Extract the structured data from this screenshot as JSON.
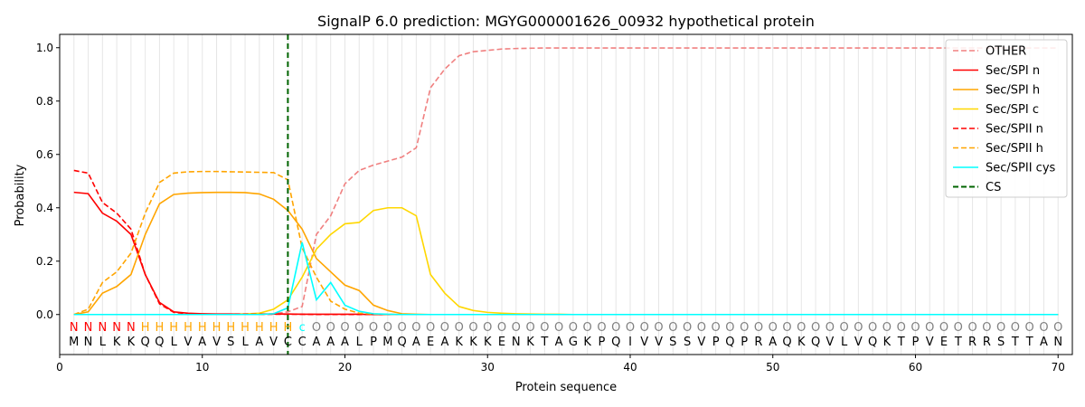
{
  "chart_data": {
    "type": "line",
    "title": "SignalP 6.0 prediction: MGYG000001626_00932 hypothetical protein",
    "xlabel": "Protein sequence",
    "ylabel": "Probability",
    "xlim": [
      0,
      71
    ],
    "ylim": [
      -0.15,
      1.05
    ],
    "xticks": [
      0,
      10,
      20,
      30,
      40,
      50,
      60,
      70
    ],
    "yticks": [
      0.0,
      0.2,
      0.4,
      0.6,
      0.8,
      1.0
    ],
    "ytick_labels": [
      "0.0",
      "0.2",
      "0.4",
      "0.6",
      "0.8",
      "1.0"
    ],
    "legend_position": "top-right",
    "grid": "vertical lines at each residue",
    "cs_position": 16,
    "sequence": [
      "M",
      "N",
      "L",
      "K",
      "K",
      "Q",
      "Q",
      "L",
      "V",
      "A",
      "V",
      "S",
      "L",
      "A",
      "V",
      "C",
      "C",
      "A",
      "A",
      "A",
      "L",
      "P",
      "M",
      "Q",
      "A",
      "E",
      "A",
      "K",
      "K",
      "K",
      "E",
      "N",
      "K",
      "T",
      "A",
      "G",
      "K",
      "P",
      "Q",
      "I",
      "V",
      "V",
      "S",
      "S",
      "V",
      "P",
      "Q",
      "P",
      "R",
      "A",
      "Q",
      "K",
      "Q",
      "V",
      "L",
      "V",
      "Q",
      "K",
      "T",
      "P",
      "V",
      "E",
      "T",
      "R",
      "R",
      "S",
      "T",
      "T",
      "A",
      "N"
    ],
    "labels": [
      "N",
      "N",
      "N",
      "N",
      "N",
      "H",
      "H",
      "H",
      "H",
      "H",
      "H",
      "H",
      "H",
      "H",
      "H",
      "H",
      "C",
      "O",
      "O",
      "O",
      "O",
      "O",
      "O",
      "O",
      "O",
      "O",
      "O",
      "O",
      "O",
      "O",
      "O",
      "O",
      "O",
      "O",
      "O",
      "O",
      "O",
      "O",
      "O",
      "O",
      "O",
      "O",
      "O",
      "O",
      "O",
      "O",
      "O",
      "O",
      "O",
      "O",
      "O",
      "O",
      "O",
      "O",
      "O",
      "O",
      "O",
      "O",
      "O",
      "O",
      "O",
      "O",
      "O",
      "O",
      "O",
      "O",
      "O",
      "O",
      "O",
      "O"
    ],
    "label_colors": {
      "N": "#ff0000",
      "H": "#ffa500",
      "C": "#00ffff",
      "O": "#808080"
    },
    "series": [
      {
        "name": "OTHER",
        "color": "#f08080",
        "dash": true,
        "values": [
          0.0,
          0.0,
          0.0,
          0.0,
          0.0,
          0.0,
          0.0,
          0.0,
          0.0,
          0.0,
          0.0,
          0.0,
          0.0,
          0.0,
          0.003,
          0.01,
          0.03,
          0.3,
          0.37,
          0.49,
          0.54,
          0.56,
          0.575,
          0.59,
          0.625,
          0.85,
          0.92,
          0.97,
          0.985,
          0.99,
          0.995,
          0.997,
          0.998,
          0.999,
          0.999,
          0.999,
          0.999,
          0.999,
          0.999,
          0.999,
          0.999,
          0.999,
          0.999,
          0.999,
          0.999,
          0.999,
          0.999,
          0.999,
          0.999,
          0.999,
          0.999,
          0.999,
          0.999,
          0.999,
          0.999,
          0.999,
          0.999,
          0.999,
          0.999,
          0.999,
          0.999,
          0.999,
          0.999,
          0.999,
          0.999,
          0.999,
          0.999,
          0.999,
          0.999,
          0.999
        ]
      },
      {
        "name": "Sec/SPI n",
        "color": "#ff0000",
        "dash": false,
        "values": [
          0.458,
          0.453,
          0.38,
          0.35,
          0.3,
          0.15,
          0.045,
          0.01,
          0.005,
          0.003,
          0.002,
          0.002,
          0.002,
          0.002,
          0.002,
          0.002,
          0.001,
          0.001,
          0.001,
          0.001,
          0.001,
          0,
          0,
          0,
          0,
          0,
          0,
          0,
          0,
          0,
          0,
          0,
          0,
          0,
          0,
          0,
          0,
          0,
          0,
          0,
          0,
          0,
          0,
          0,
          0,
          0,
          0,
          0,
          0,
          0,
          0,
          0,
          0,
          0,
          0,
          0,
          0,
          0,
          0,
          0,
          0,
          0,
          0,
          0,
          0,
          0,
          0,
          0,
          0,
          0
        ]
      },
      {
        "name": "Sec/SPI h",
        "color": "#ffa500",
        "dash": false,
        "values": [
          0.0,
          0.01,
          0.08,
          0.105,
          0.15,
          0.3,
          0.415,
          0.45,
          0.455,
          0.457,
          0.458,
          0.458,
          0.457,
          0.452,
          0.432,
          0.39,
          0.32,
          0.21,
          0.16,
          0.11,
          0.09,
          0.035,
          0.015,
          0.003,
          0.001,
          0,
          0,
          0,
          0,
          0,
          0,
          0,
          0,
          0,
          0,
          0,
          0,
          0,
          0,
          0,
          0,
          0,
          0,
          0,
          0,
          0,
          0,
          0,
          0,
          0,
          0,
          0,
          0,
          0,
          0,
          0,
          0,
          0,
          0,
          0,
          0,
          0,
          0,
          0,
          0,
          0,
          0,
          0,
          0,
          0
        ]
      },
      {
        "name": "Sec/SPI c",
        "color": "#ffd700",
        "dash": false,
        "values": [
          0,
          0,
          0,
          0,
          0,
          0,
          0,
          0,
          0,
          0,
          0,
          0,
          0.002,
          0.005,
          0.02,
          0.055,
          0.14,
          0.245,
          0.3,
          0.34,
          0.345,
          0.39,
          0.4,
          0.4,
          0.37,
          0.15,
          0.08,
          0.03,
          0.015,
          0.008,
          0.005,
          0.003,
          0.002,
          0.001,
          0.001,
          0,
          0,
          0,
          0,
          0,
          0,
          0,
          0,
          0,
          0,
          0,
          0,
          0,
          0,
          0,
          0,
          0,
          0,
          0,
          0,
          0,
          0,
          0,
          0,
          0,
          0,
          0,
          0,
          0,
          0,
          0,
          0,
          0,
          0,
          0
        ]
      },
      {
        "name": "Sec/SPII n",
        "color": "#ff0000",
        "dash": true,
        "values": [
          0.54,
          0.53,
          0.42,
          0.38,
          0.32,
          0.15,
          0.04,
          0.008,
          0.003,
          0.002,
          0.001,
          0.001,
          0.001,
          0.001,
          0.001,
          0.001,
          0.001,
          0,
          0,
          0,
          0,
          0,
          0,
          0,
          0,
          0,
          0,
          0,
          0,
          0,
          0,
          0,
          0,
          0,
          0,
          0,
          0,
          0,
          0,
          0,
          0,
          0,
          0,
          0,
          0,
          0,
          0,
          0,
          0,
          0,
          0,
          0,
          0,
          0,
          0,
          0,
          0,
          0,
          0,
          0,
          0,
          0,
          0,
          0,
          0,
          0,
          0,
          0,
          0,
          0
        ]
      },
      {
        "name": "Sec/SPII h",
        "color": "#ffa500",
        "dash": true,
        "values": [
          0.0,
          0.02,
          0.12,
          0.16,
          0.23,
          0.38,
          0.495,
          0.53,
          0.535,
          0.536,
          0.536,
          0.535,
          0.534,
          0.533,
          0.532,
          0.505,
          0.25,
          0.14,
          0.05,
          0.02,
          0.005,
          0.002,
          0.001,
          0,
          0,
          0,
          0,
          0,
          0,
          0,
          0,
          0,
          0,
          0,
          0,
          0,
          0,
          0,
          0,
          0,
          0,
          0,
          0,
          0,
          0,
          0,
          0,
          0,
          0,
          0,
          0,
          0,
          0,
          0,
          0,
          0,
          0,
          0,
          0,
          0,
          0,
          0,
          0,
          0,
          0,
          0,
          0,
          0,
          0,
          0
        ]
      },
      {
        "name": "Sec/SPII cys",
        "color": "#00ffff",
        "dash": false,
        "values": [
          0,
          0,
          0,
          0,
          0,
          0,
          0,
          0,
          0,
          0,
          0,
          0,
          0,
          0,
          0.003,
          0.025,
          0.27,
          0.055,
          0.12,
          0.035,
          0.012,
          0.003,
          0.001,
          0,
          0,
          0,
          0,
          0,
          0,
          0,
          0,
          0,
          0,
          0,
          0,
          0,
          0,
          0,
          0,
          0,
          0,
          0,
          0,
          0,
          0,
          0,
          0,
          0,
          0,
          0,
          0,
          0,
          0,
          0,
          0,
          0,
          0,
          0,
          0,
          0,
          0,
          0,
          0,
          0,
          0,
          0,
          0,
          0,
          0,
          0
        ]
      },
      {
        "name": "CS",
        "color": "#006400",
        "dash": true,
        "vline": true
      }
    ]
  }
}
